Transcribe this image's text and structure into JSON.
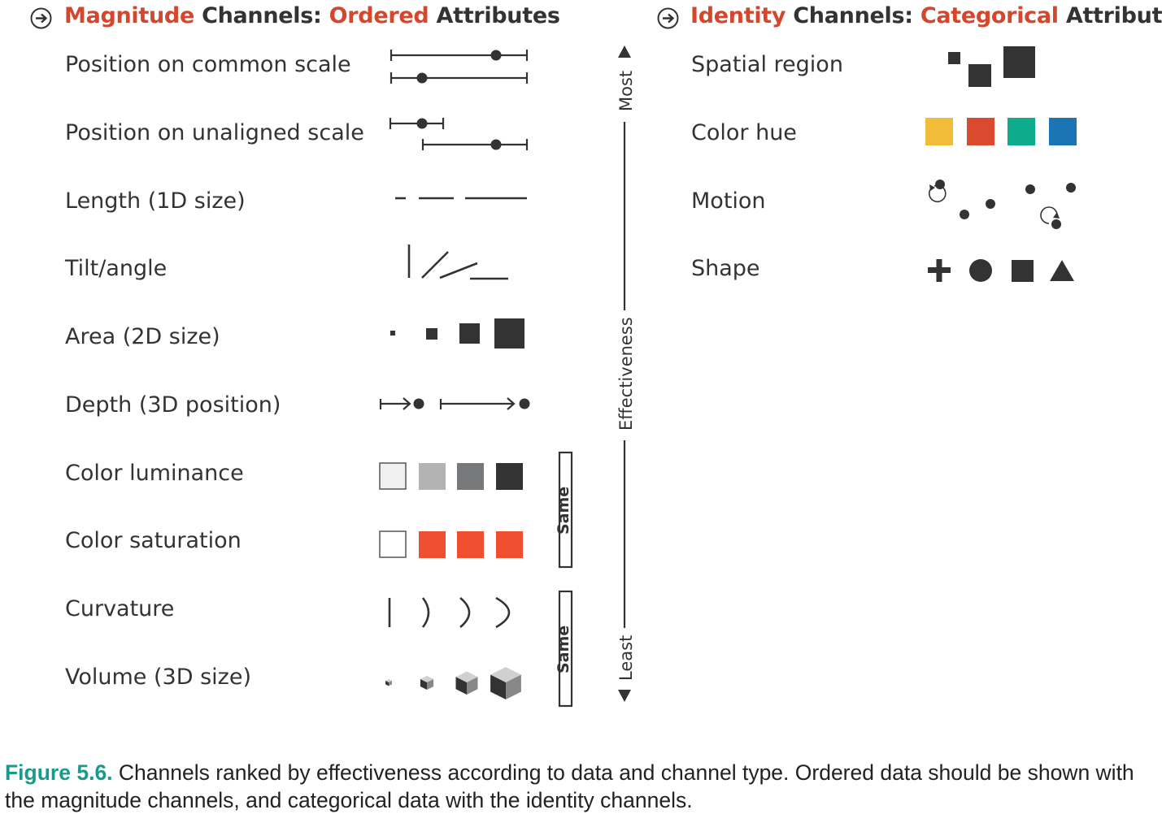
{
  "magnitude": {
    "title_word": "Magnitude",
    "title_mid": "Channels:",
    "title_type": "Ordered",
    "title_end": "Attributes",
    "items": [
      "Position on common scale",
      "Position on unaligned scale",
      "Length (1D size)",
      "Tilt/angle",
      "Area (2D size)",
      "Depth (3D position)",
      "Color luminance",
      "Color saturation",
      "Curvature",
      "Volume (3D size)"
    ]
  },
  "identity": {
    "title_word": "Identity",
    "title_mid": "Channels:",
    "title_type": "Categorical",
    "title_end": "Attributes",
    "items": [
      "Spatial region",
      "Color hue",
      "Motion",
      "Shape"
    ]
  },
  "effectiveness": {
    "top": "Most",
    "middle": "Effectiveness",
    "bottom": "Least"
  },
  "same_labels": [
    "Same",
    "Same"
  ],
  "caption": {
    "figure": "Figure 5.6.",
    "text": " Channels ranked by effectiveness according to data and channel type. Ordered data should be shown with the magnitude channels, and categorical data with the identity channels."
  },
  "colors": {
    "accent": "#d4472c",
    "dark": "#333333",
    "hue_yellow": "#f2bc38",
    "hue_red": "#d94a2e",
    "hue_teal": "#0fab8d",
    "hue_blue": "#1b75b5",
    "saturation_red": "#f04e30",
    "lum_1": "#f0f0f0",
    "lum_2": "#b3b3b3",
    "lum_3": "#77787a",
    "lum_4": "#333333",
    "caption_figure": "#1a9a8a"
  }
}
